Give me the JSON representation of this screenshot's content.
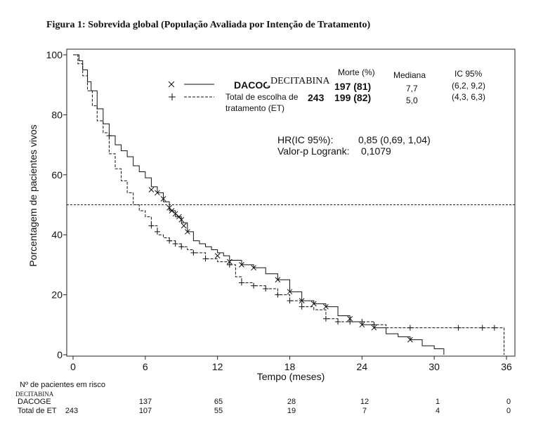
{
  "figure": {
    "title": "Figura 1: Sobrevida global (População Avaliada por Intenção de Tratamento)"
  },
  "chart_data": {
    "type": "line",
    "xlabel": "Tempo (meses)",
    "ylabel": "Porcentagem de pacientes vivos",
    "xlim": [
      0,
      36
    ],
    "ylim": [
      0,
      100
    ],
    "xticks": [
      0,
      6,
      12,
      18,
      24,
      30,
      36
    ],
    "yticks": [
      0,
      20,
      40,
      60,
      80,
      100
    ],
    "reference_line_y": 50,
    "legend": {
      "header_morte": "Morte (%)",
      "header_mediana": "Mediana",
      "header_ic": "IC 95%",
      "rows": [
        {
          "name_overlay": "DECITABINA",
          "name_under": "DACOG",
          "n": "197 (81)",
          "mediana": "7,7",
          "ic": "(6,2, 9,2)",
          "marker": "×",
          "line": "solid"
        },
        {
          "name_line1": "Total de escolha de",
          "name_line2": "tratamento (ET)",
          "n_total": "243",
          "n": "199 (82)",
          "mediana": "5,0",
          "ic": "(4,3, 6,3)",
          "marker": "+",
          "line": "dashed"
        }
      ]
    },
    "stats": {
      "hr_label": "HR(IC 95%):",
      "hr_value": "0,85 (0,69, 1,04)",
      "p_label": "Valor-p Logrank:",
      "p_value": "0,1079"
    },
    "series": [
      {
        "name": "DACOGEN",
        "style": "solid",
        "marker": "x",
        "points": [
          [
            0,
            100
          ],
          [
            0.5,
            98
          ],
          [
            0.8,
            95
          ],
          [
            1.2,
            91
          ],
          [
            1.5,
            88
          ],
          [
            2,
            82
          ],
          [
            2.5,
            77
          ],
          [
            3,
            73
          ],
          [
            3.5,
            70
          ],
          [
            4,
            68
          ],
          [
            4.5,
            66
          ],
          [
            5,
            63
          ],
          [
            5.5,
            61
          ],
          [
            6,
            59
          ],
          [
            6.5,
            56
          ],
          [
            7,
            54
          ],
          [
            7.5,
            51
          ],
          [
            8,
            48
          ],
          [
            8.5,
            46
          ],
          [
            9,
            44
          ],
          [
            9.5,
            41
          ],
          [
            10,
            38
          ],
          [
            10.5,
            37
          ],
          [
            11,
            36
          ],
          [
            11.5,
            35
          ],
          [
            12,
            34
          ],
          [
            12.5,
            33
          ],
          [
            13,
            31.5
          ],
          [
            14,
            30
          ],
          [
            15,
            29
          ],
          [
            16,
            27
          ],
          [
            17,
            25
          ],
          [
            18,
            21
          ],
          [
            19,
            18
          ],
          [
            20,
            17
          ],
          [
            21,
            16
          ],
          [
            22,
            13
          ],
          [
            23,
            11
          ],
          [
            24,
            10
          ],
          [
            25,
            9
          ],
          [
            26,
            7
          ],
          [
            27,
            6
          ],
          [
            28,
            5
          ],
          [
            29,
            3
          ],
          [
            30,
            2
          ],
          [
            30.8,
            0
          ]
        ],
        "censor": [
          [
            6.5,
            55
          ],
          [
            7,
            54
          ],
          [
            7.5,
            52
          ],
          [
            8,
            49
          ],
          [
            8.2,
            48
          ],
          [
            8.5,
            47
          ],
          [
            8.8,
            46
          ],
          [
            9,
            45
          ],
          [
            9.2,
            43
          ],
          [
            9.5,
            41
          ],
          [
            12,
            33
          ],
          [
            13,
            31
          ],
          [
            14,
            30
          ],
          [
            15,
            29
          ],
          [
            17,
            25
          ],
          [
            18,
            21
          ],
          [
            19,
            18
          ],
          [
            20,
            17
          ],
          [
            21,
            16
          ],
          [
            23,
            12
          ],
          [
            24,
            10
          ],
          [
            25,
            9
          ],
          [
            28,
            5
          ]
        ]
      },
      {
        "name": "Total de ET",
        "style": "dashed",
        "marker": "+",
        "points": [
          [
            0,
            100
          ],
          [
            0.4,
            97
          ],
          [
            0.8,
            93
          ],
          [
            1.2,
            88
          ],
          [
            1.6,
            83
          ],
          [
            2,
            78
          ],
          [
            2.5,
            74
          ],
          [
            3,
            67
          ],
          [
            3.5,
            62
          ],
          [
            4,
            58
          ],
          [
            4.5,
            54
          ],
          [
            5,
            50
          ],
          [
            5.5,
            48
          ],
          [
            6,
            46
          ],
          [
            6.5,
            43
          ],
          [
            7,
            40
          ],
          [
            7.5,
            39
          ],
          [
            8,
            38
          ],
          [
            8.5,
            37
          ],
          [
            9,
            36
          ],
          [
            9.5,
            35
          ],
          [
            10,
            34
          ],
          [
            11,
            32
          ],
          [
            12,
            31
          ],
          [
            13,
            30
          ],
          [
            13.5,
            26
          ],
          [
            14,
            24
          ],
          [
            15,
            23
          ],
          [
            16,
            22
          ],
          [
            17,
            20
          ],
          [
            18,
            18
          ],
          [
            19,
            16
          ],
          [
            20,
            15
          ],
          [
            21,
            12
          ],
          [
            22,
            11
          ],
          [
            23,
            11
          ],
          [
            24,
            11
          ],
          [
            25,
            10
          ],
          [
            26,
            9
          ],
          [
            28,
            9
          ],
          [
            30,
            9
          ],
          [
            35.8,
            9
          ],
          [
            35.8,
            0
          ]
        ],
        "censor": [
          [
            3,
            73
          ],
          [
            6.5,
            43
          ],
          [
            7,
            41
          ],
          [
            8,
            38
          ],
          [
            8.5,
            37
          ],
          [
            9,
            36
          ],
          [
            10,
            34
          ],
          [
            11,
            32
          ],
          [
            13,
            30
          ],
          [
            14,
            24
          ],
          [
            15,
            23
          ],
          [
            16,
            22
          ],
          [
            17,
            20
          ],
          [
            18,
            18
          ],
          [
            19,
            16
          ],
          [
            21,
            12
          ],
          [
            22,
            11
          ],
          [
            23,
            11
          ],
          [
            24,
            11
          ],
          [
            25,
            10
          ],
          [
            28,
            9
          ],
          [
            32,
            9
          ],
          [
            34,
            9
          ],
          [
            35,
            9
          ]
        ]
      }
    ]
  },
  "risk_table": {
    "heading": "Nº de pacientes em risco",
    "overlay": "DECITABINA",
    "rows": [
      {
        "label": "DACOGE",
        "values": [
          "",
          "137",
          "65",
          "28",
          "12",
          "1",
          "0"
        ]
      },
      {
        "label": "Total de ET",
        "values": [
          "243",
          "107",
          "55",
          "19",
          "7",
          "4",
          "0"
        ]
      }
    ]
  }
}
